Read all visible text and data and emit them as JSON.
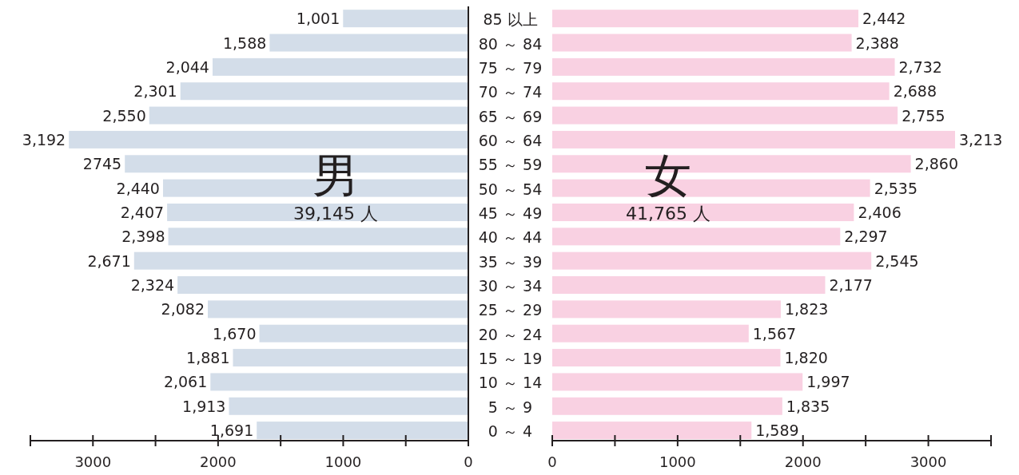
{
  "chart_data": [
    {
      "type": "bar",
      "orientation": "horizontal",
      "color": "#d3dde9",
      "categories": [
        "85 以上",
        "80 ～ 84",
        "75 ～ 79",
        "70 ～ 74",
        "65 ～ 69",
        "60 ～ 64",
        "55 ～ 59",
        "50 ～ 54",
        "45 ～ 49",
        "40 ～ 44",
        "35 ～ 39",
        "30 ～ 34",
        "25 ～ 29",
        "20 ～ 24",
        "15 ～ 19",
        "10 ～ 14",
        "5 ～ 9",
        "0 ～ 4"
      ],
      "values": [
        1001,
        1588,
        2044,
        2301,
        2550,
        3192,
        2745,
        2440,
        2407,
        2398,
        2671,
        2324,
        2082,
        1670,
        1881,
        2061,
        1913,
        1691
      ],
      "value_labels": [
        "1,001",
        "1,588",
        "2,044",
        "2,301",
        "2,550",
        "3,192",
        "2745",
        "2,440",
        "2,407",
        "2,398",
        "2,671",
        "2,324",
        "2,082",
        "1,670",
        "1,881",
        "2,061",
        "1,913",
        "1,691"
      ],
      "xlim": [
        3500,
        0
      ],
      "xticks": [
        {
          "value": 3500,
          "label": null
        },
        3000,
        {
          "value": 2500,
          "label": null
        },
        2000,
        {
          "value": 1500,
          "label": null
        },
        1000,
        {
          "value": 500,
          "label": null
        },
        0
      ],
      "annotations": [
        "男",
        "39,145 人"
      ]
    },
    {
      "type": "bar",
      "orientation": "horizontal",
      "color": "#f9d1e2",
      "values": [
        2442,
        2388,
        2732,
        2688,
        2755,
        3213,
        2860,
        2535,
        2406,
        2297,
        2545,
        2177,
        1823,
        1567,
        1820,
        1997,
        1835,
        1589
      ],
      "value_labels": [
        "2,442",
        "2,388",
        "2,732",
        "2,688",
        "2,755",
        "3,213",
        "2,860",
        "2,535",
        "2,406",
        "2,297",
        "2,545",
        "2,177",
        "1,823",
        "1,567",
        "1,820",
        "1,997",
        "1,835",
        "1,589"
      ],
      "xlim": [
        0,
        3500
      ],
      "xticks": [
        0,
        {
          "value": 500,
          "label": null
        },
        1000,
        {
          "value": 1500,
          "label": null
        },
        2000,
        {
          "value": 2500,
          "label": null
        },
        3000,
        {
          "value": 3500,
          "label": null
        }
      ],
      "tick_labels": "x",
      "annotations": [
        "女",
        "41,765 人"
      ]
    }
  ]
}
